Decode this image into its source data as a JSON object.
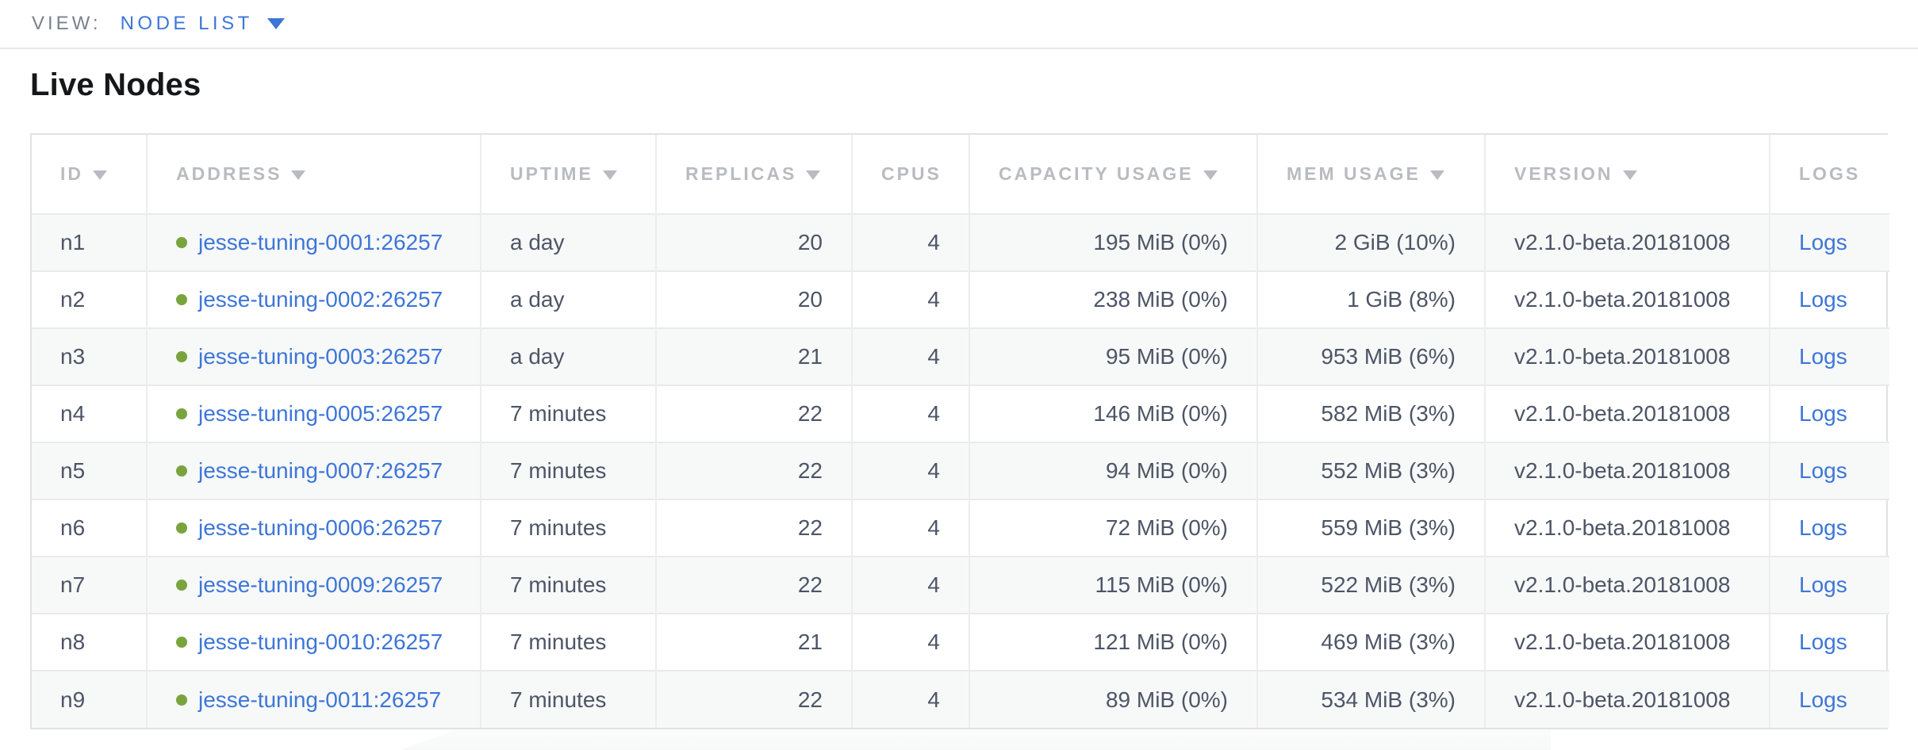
{
  "view_bar": {
    "label": "VIEW:",
    "selected": "NODE LIST"
  },
  "page": {
    "title": "Live Nodes"
  },
  "table": {
    "logs_label": "Logs",
    "columns": [
      {
        "key": "id",
        "label": "ID",
        "sortable": true,
        "align": "left"
      },
      {
        "key": "address",
        "label": "ADDRESS",
        "sortable": true,
        "align": "left"
      },
      {
        "key": "uptime",
        "label": "UPTIME",
        "sortable": true,
        "align": "left"
      },
      {
        "key": "replicas",
        "label": "REPLICAS",
        "sortable": true,
        "align": "right"
      },
      {
        "key": "cpus",
        "label": "CPUS",
        "sortable": false,
        "align": "right"
      },
      {
        "key": "capacity_usage",
        "label": "CAPACITY USAGE",
        "sortable": true,
        "align": "right"
      },
      {
        "key": "mem_usage",
        "label": "MEM USAGE",
        "sortable": true,
        "align": "right"
      },
      {
        "key": "version",
        "label": "VERSION",
        "sortable": true,
        "align": "left"
      },
      {
        "key": "logs",
        "label": "LOGS",
        "sortable": false,
        "align": "left"
      }
    ],
    "rows": [
      {
        "id": "n1",
        "status": "live",
        "address": "jesse-tuning-0001:26257",
        "uptime": "a day",
        "replicas": "20",
        "cpus": "4",
        "capacity_usage": "195 MiB (0%)",
        "mem_usage": "2 GiB (10%)",
        "version": "v2.1.0-beta.20181008"
      },
      {
        "id": "n2",
        "status": "live",
        "address": "jesse-tuning-0002:26257",
        "uptime": "a day",
        "replicas": "20",
        "cpus": "4",
        "capacity_usage": "238 MiB (0%)",
        "mem_usage": "1 GiB (8%)",
        "version": "v2.1.0-beta.20181008"
      },
      {
        "id": "n3",
        "status": "live",
        "address": "jesse-tuning-0003:26257",
        "uptime": "a day",
        "replicas": "21",
        "cpus": "4",
        "capacity_usage": "95 MiB (0%)",
        "mem_usage": "953 MiB (6%)",
        "version": "v2.1.0-beta.20181008"
      },
      {
        "id": "n4",
        "status": "live",
        "address": "jesse-tuning-0005:26257",
        "uptime": "7 minutes",
        "replicas": "22",
        "cpus": "4",
        "capacity_usage": "146 MiB (0%)",
        "mem_usage": "582 MiB (3%)",
        "version": "v2.1.0-beta.20181008"
      },
      {
        "id": "n5",
        "status": "live",
        "address": "jesse-tuning-0007:26257",
        "uptime": "7 minutes",
        "replicas": "22",
        "cpus": "4",
        "capacity_usage": "94 MiB (0%)",
        "mem_usage": "552 MiB (3%)",
        "version": "v2.1.0-beta.20181008"
      },
      {
        "id": "n6",
        "status": "live",
        "address": "jesse-tuning-0006:26257",
        "uptime": "7 minutes",
        "replicas": "22",
        "cpus": "4",
        "capacity_usage": "72 MiB (0%)",
        "mem_usage": "559 MiB (3%)",
        "version": "v2.1.0-beta.20181008"
      },
      {
        "id": "n7",
        "status": "live",
        "address": "jesse-tuning-0009:26257",
        "uptime": "7 minutes",
        "replicas": "22",
        "cpus": "4",
        "capacity_usage": "115 MiB (0%)",
        "mem_usage": "522 MiB (3%)",
        "version": "v2.1.0-beta.20181008"
      },
      {
        "id": "n8",
        "status": "live",
        "address": "jesse-tuning-0010:26257",
        "uptime": "7 minutes",
        "replicas": "21",
        "cpus": "4",
        "capacity_usage": "121 MiB (0%)",
        "mem_usage": "469 MiB (3%)",
        "version": "v2.1.0-beta.20181008"
      },
      {
        "id": "n9",
        "status": "live",
        "address": "jesse-tuning-0011:26257",
        "uptime": "7 minutes",
        "replicas": "22",
        "cpus": "4",
        "capacity_usage": "89 MiB (0%)",
        "mem_usage": "534 MiB (3%)",
        "version": "v2.1.0-beta.20181008"
      }
    ]
  },
  "colors": {
    "accent_blue": "#3d76d8",
    "live_green": "#79a43d",
    "header_gray": "#b8bcc1",
    "cell_text": "#4d5566",
    "row_stripe": "#f7f8f8"
  }
}
